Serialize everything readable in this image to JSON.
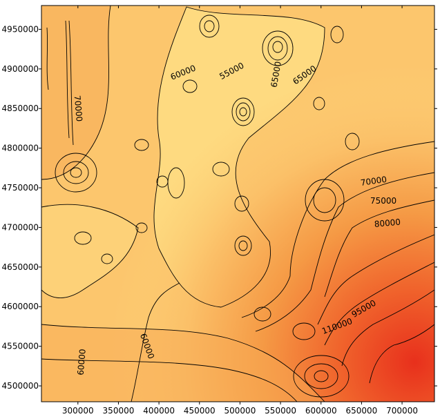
{
  "chart_data": {
    "type": "contour",
    "title": "",
    "xlabel": "",
    "ylabel": "",
    "xlim": [
      255000,
      740000
    ],
    "ylim": [
      4480000,
      4980000
    ],
    "x_ticks": [
      300000,
      350000,
      400000,
      450000,
      500000,
      550000,
      600000,
      650000,
      700000
    ],
    "x_tick_labels": [
      "300000",
      "350000",
      "400000",
      "450000",
      "500000",
      "550000",
      "600000",
      "650000",
      "700000"
    ],
    "y_ticks": [
      4500000,
      4550000,
      4600000,
      4650000,
      4700000,
      4750000,
      4800000,
      4850000,
      4900000,
      4950000
    ],
    "y_tick_labels": [
      "4500000",
      "4550000",
      "4600000",
      "4650000",
      "4700000",
      "4750000",
      "4800000",
      "4850000",
      "4900000",
      "4950000"
    ],
    "grid": false,
    "colormap_low": "#ffe08a",
    "colormap_high": "#e8301c",
    "contour_labels": [
      {
        "text": "55000",
        "x": 490000,
        "y": 4897000,
        "rotate": -28
      },
      {
        "text": "60000",
        "x": 430000,
        "y": 4895000,
        "rotate": -22
      },
      {
        "text": "65000",
        "x": 545000,
        "y": 4893000,
        "rotate": -80
      },
      {
        "text": "65000",
        "x": 580000,
        "y": 4892000,
        "rotate": -35
      },
      {
        "text": "70000",
        "x": 300000,
        "y": 4850000,
        "rotate": 85
      },
      {
        "text": "70000",
        "x": 665000,
        "y": 4758000,
        "rotate": -8
      },
      {
        "text": "75000",
        "x": 677000,
        "y": 4733000,
        "rotate": 0
      },
      {
        "text": "80000",
        "x": 682000,
        "y": 4705000,
        "rotate": -5
      },
      {
        "text": "95000",
        "x": 653000,
        "y": 4597000,
        "rotate": -30
      },
      {
        "text": "110000",
        "x": 620000,
        "y": 4575000,
        "rotate": -20
      },
      {
        "text": "60000",
        "x": 305000,
        "y": 4530000,
        "rotate": -85
      },
      {
        "text": "60000",
        "x": 385000,
        "y": 4550000,
        "rotate": 70
      }
    ]
  }
}
